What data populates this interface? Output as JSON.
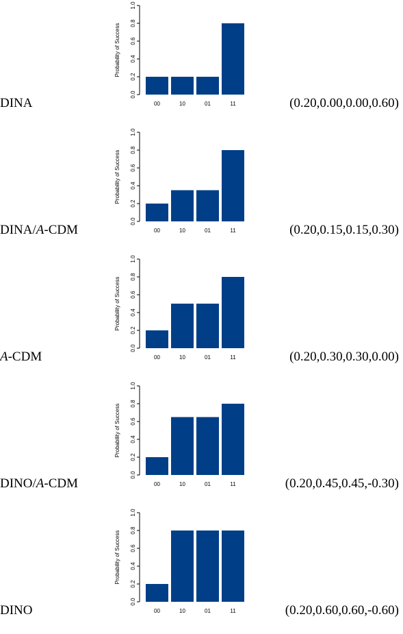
{
  "bar_color": "#003f87",
  "chart_data": [
    {
      "type": "bar",
      "model": "DINA",
      "params": "(0.20,0.00,0.00,0.60)",
      "categories": [
        "00",
        "10",
        "01",
        "11"
      ],
      "values": [
        0.2,
        0.2,
        0.2,
        0.8
      ],
      "ylabel": "Probability of Success",
      "ylim": [
        0,
        1.0
      ],
      "yticks": [
        "0.0",
        "0.2",
        "0.4",
        "0.6",
        "0.8",
        "1.0"
      ]
    },
    {
      "type": "bar",
      "model": "DINA/A-CDM",
      "params": "(0.20,0.15,0.15,0.30)",
      "categories": [
        "00",
        "10",
        "01",
        "11"
      ],
      "values": [
        0.2,
        0.35,
        0.35,
        0.8
      ],
      "ylabel": "Probability of Success",
      "ylim": [
        0,
        1.0
      ],
      "yticks": [
        "0.0",
        "0.2",
        "0.4",
        "0.6",
        "0.8",
        "1.0"
      ]
    },
    {
      "type": "bar",
      "model": "A-CDM",
      "params": "(0.20,0.30,0.30,0.00)",
      "categories": [
        "00",
        "10",
        "01",
        "11"
      ],
      "values": [
        0.2,
        0.5,
        0.5,
        0.8
      ],
      "ylabel": "Probability of Success",
      "ylim": [
        0,
        1.0
      ],
      "yticks": [
        "0.0",
        "0.2",
        "0.4",
        "0.6",
        "0.8",
        "1.0"
      ]
    },
    {
      "type": "bar",
      "model": "DINO/A-CDM",
      "params": "(0.20,0.45,0.45,-0.30)",
      "categories": [
        "00",
        "10",
        "01",
        "11"
      ],
      "values": [
        0.2,
        0.65,
        0.65,
        0.8
      ],
      "ylabel": "Probability of Success",
      "ylim": [
        0,
        1.0
      ],
      "yticks": [
        "0.0",
        "0.2",
        "0.4",
        "0.6",
        "0.8",
        "1.0"
      ]
    },
    {
      "type": "bar",
      "model": "DINO",
      "params": "(0.20,0.60,0.60,-0.60)",
      "categories": [
        "00",
        "10",
        "01",
        "11"
      ],
      "values": [
        0.2,
        0.8,
        0.8,
        0.8
      ],
      "ylabel": "Probability of Success",
      "ylim": [
        0,
        1.0
      ],
      "yticks": [
        "0.0",
        "0.2",
        "0.4",
        "0.6",
        "0.8",
        "1.0"
      ]
    }
  ]
}
